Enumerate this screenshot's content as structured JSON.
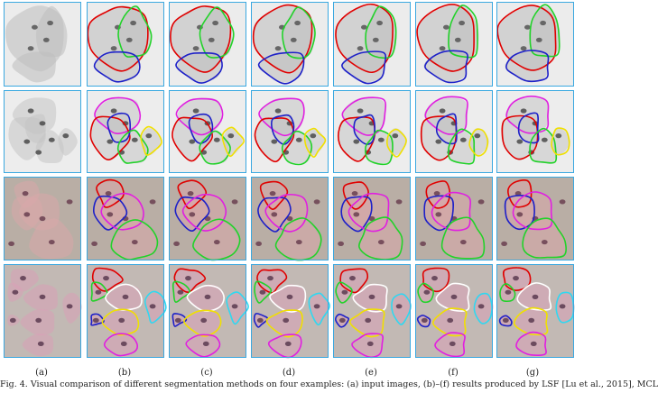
{
  "figure": {
    "column_labels": [
      "(a)",
      "(b)",
      "(c)",
      "(d)",
      "(e)",
      "(f)",
      "(g)"
    ],
    "caption": "Fig. 4.  Visual comparison of different segmentation methods on four examples: (a) input images, (b)–(f) results produced by LSF [Lu et al., 2015], MCL",
    "rows": [
      {
        "name": "grayscale-example-1",
        "background": "#ececec"
      },
      {
        "name": "grayscale-example-2",
        "background": "#ededed"
      },
      {
        "name": "color-example-1",
        "background": "#b9aea5"
      },
      {
        "name": "color-example-2",
        "background": "#c2b9b4"
      }
    ],
    "contour_colors": {
      "red": "#e00000",
      "green": "#22d22a",
      "blue": "#1d20c8",
      "magenta": "#e020e0",
      "yellow": "#f0e000",
      "white": "#ffffff",
      "cyan": "#30d8f0"
    },
    "frame_color": "#3aa8e0"
  }
}
